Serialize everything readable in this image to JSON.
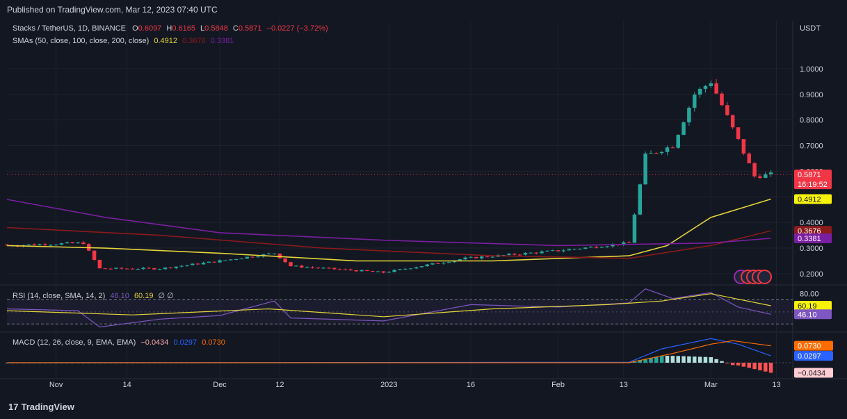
{
  "header": {
    "published": "Published on TradingView.com, Mar 12, 2023 07:40 UTC"
  },
  "footer": {
    "brand": "TradingView",
    "logo_text": "17"
  },
  "colors": {
    "background": "#131722",
    "up": "#26a69a",
    "down": "#f23645",
    "sma50": "#e5d43a",
    "sma100": "#8b1a1a",
    "sma200": "#7b1fa2",
    "rsi": "#7e57c2",
    "rsi_sma": "#e5d43a",
    "macd": "#2962ff",
    "signal": "#ff6d00"
  },
  "legend": {
    "symbol": "Stacks / TetherUS, 1D, BINANCE",
    "o_label": "O",
    "o": "0.6097",
    "h_label": "H",
    "h": "0.6165",
    "l_label": "L",
    "l": "0.5848",
    "c_label": "C",
    "c": "0.5871",
    "change": "−0.0227 (−3.72%)",
    "sma_title": "SMAs (50, close, 100, close, 200, close)",
    "sma50": "0.4912",
    "sma100": "0.3676",
    "sma200": "0.3381",
    "rsi_title": "RSI (14, close, SMA, 14, 2)",
    "rsi": "46.10",
    "rsi_sma": "60.19",
    "rsi_extra": "∅  ∅",
    "macd_title": "MACD (12, 26, close, 9, EMA, EMA)",
    "macd_hist": "−0.0434",
    "macd": "0.0297",
    "macd_signal": "0.0730"
  },
  "chart_data": [
    {
      "type": "candlestick",
      "title": "Stacks / TetherUS, 1D, BINANCE",
      "currency": "USDT",
      "x_range": [
        "2022-10-23",
        "2023-03-16"
      ],
      "y_range": [
        0.17,
        1.1
      ],
      "y_ticks": [
        0.2,
        0.3,
        0.4,
        0.5,
        0.6,
        0.7,
        0.8,
        0.9,
        1.0
      ],
      "y_tick_labels": [
        "0.2000",
        "0.3000",
        "0.4000",
        "0.5000",
        "0.6000",
        "0.7000",
        "0.8000",
        "0.9000",
        "1.0000"
      ],
      "x_ticks": [
        {
          "date": "2022-11-01",
          "label": "Nov"
        },
        {
          "date": "2022-11-14",
          "label": "14"
        },
        {
          "date": "2022-12-01",
          "label": "Dec"
        },
        {
          "date": "2022-12-12",
          "label": "12"
        },
        {
          "date": "2023-01-01",
          "label": "2023"
        },
        {
          "date": "2023-01-16",
          "label": "16"
        },
        {
          "date": "2023-02-01",
          "label": "Feb"
        },
        {
          "date": "2023-02-13",
          "label": "13"
        },
        {
          "date": "2023-03-01",
          "label": "Mar"
        },
        {
          "date": "2023-03-13",
          "label": "13"
        }
      ],
      "ohlc_key_points": [
        {
          "date": "2022-10-23",
          "close": 0.31
        },
        {
          "date": "2022-11-06",
          "close": 0.32
        },
        {
          "date": "2022-11-09",
          "close": 0.22
        },
        {
          "date": "2022-11-20",
          "close": 0.22
        },
        {
          "date": "2022-12-01",
          "close": 0.25
        },
        {
          "date": "2022-12-11",
          "close": 0.28
        },
        {
          "date": "2022-12-14",
          "close": 0.23
        },
        {
          "date": "2022-12-31",
          "close": 0.205
        },
        {
          "date": "2023-01-15",
          "close": 0.26
        },
        {
          "date": "2023-02-01",
          "close": 0.29
        },
        {
          "date": "2023-02-14",
          "close": 0.32
        },
        {
          "date": "2023-02-17",
          "close": 0.66
        },
        {
          "date": "2023-02-22",
          "close": 0.7
        },
        {
          "date": "2023-02-26",
          "close": 0.9
        },
        {
          "date": "2023-03-01",
          "close": 0.95
        },
        {
          "date": "2023-03-06",
          "close": 0.72
        },
        {
          "date": "2023-03-09",
          "close": 0.58
        },
        {
          "date": "2023-03-12",
          "close": 0.5871
        }
      ],
      "last_price": {
        "value": 0.5871,
        "label": "0.5871",
        "countdown": "16:19:52"
      },
      "series": [
        {
          "name": "SMA 50",
          "last": 0.4912,
          "label": "0.4912",
          "points": [
            [
              "2022-10-23",
              0.31
            ],
            [
              "2022-11-10",
              0.3
            ],
            [
              "2022-12-01",
              0.28
            ],
            [
              "2022-12-26",
              0.25
            ],
            [
              "2023-01-20",
              0.25
            ],
            [
              "2023-02-14",
              0.27
            ],
            [
              "2023-02-21",
              0.31
            ],
            [
              "2023-03-01",
              0.42
            ],
            [
              "2023-03-12",
              0.4912
            ]
          ]
        },
        {
          "name": "SMA 100",
          "last": 0.3676,
          "label": "0.3676",
          "points": [
            [
              "2022-10-23",
              0.38
            ],
            [
              "2022-11-20",
              0.35
            ],
            [
              "2022-12-20",
              0.3
            ],
            [
              "2023-01-20",
              0.27
            ],
            [
              "2023-02-14",
              0.26
            ],
            [
              "2023-03-01",
              0.31
            ],
            [
              "2023-03-12",
              0.3676
            ]
          ]
        },
        {
          "name": "SMA 200",
          "last": 0.3381,
          "label": "0.3381",
          "points": [
            [
              "2022-10-23",
              0.49
            ],
            [
              "2022-11-10",
              0.42
            ],
            [
              "2022-12-01",
              0.36
            ],
            [
              "2023-01-01",
              0.33
            ],
            [
              "2023-02-01",
              0.31
            ],
            [
              "2023-03-01",
              0.32
            ],
            [
              "2023-03-12",
              0.3381
            ]
          ]
        }
      ]
    },
    {
      "type": "line",
      "title": "RSI (14, close, SMA, 14, 2)",
      "y_range": [
        20,
        90
      ],
      "y_ticks": [
        80.0
      ],
      "y_tick_labels": [
        "80.00"
      ],
      "series": [
        {
          "name": "RSI",
          "last": 46.1,
          "label": "46.10",
          "points": [
            [
              "2022-10-23",
              55
            ],
            [
              "2022-11-05",
              52
            ],
            [
              "2022-11-09",
              25
            ],
            [
              "2022-11-20",
              38
            ],
            [
              "2022-12-01",
              44
            ],
            [
              "2022-12-11",
              68
            ],
            [
              "2022-12-14",
              40
            ],
            [
              "2022-12-31",
              35
            ],
            [
              "2023-01-16",
              62
            ],
            [
              "2023-02-01",
              58
            ],
            [
              "2023-02-14",
              65
            ],
            [
              "2023-02-17",
              88
            ],
            [
              "2023-02-22",
              72
            ],
            [
              "2023-03-01",
              82
            ],
            [
              "2023-03-06",
              58
            ],
            [
              "2023-03-12",
              46.1
            ]
          ]
        },
        {
          "name": "RSI SMA",
          "last": 60.19,
          "label": "60.19",
          "points": [
            [
              "2022-10-23",
              52
            ],
            [
              "2022-11-15",
              45
            ],
            [
              "2022-12-10",
              55
            ],
            [
              "2022-12-31",
              42
            ],
            [
              "2023-01-20",
              55
            ],
            [
              "2023-02-10",
              62
            ],
            [
              "2023-02-20",
              68
            ],
            [
              "2023-03-01",
              80
            ],
            [
              "2023-03-12",
              60.19
            ]
          ]
        }
      ]
    },
    {
      "type": "bar+line",
      "title": "MACD (12, 26, close, 9, EMA, EMA)",
      "y_range": [
        -0.06,
        0.12
      ],
      "series": [
        {
          "name": "Histogram",
          "last": -0.0434,
          "label": "−0.0434"
        },
        {
          "name": "MACD",
          "last": 0.0297,
          "label": "0.0297",
          "points": [
            [
              "2022-10-23",
              0.0
            ],
            [
              "2022-12-10",
              0.001
            ],
            [
              "2023-02-14",
              0.002
            ],
            [
              "2023-02-20",
              0.06
            ],
            [
              "2023-03-01",
              0.104
            ],
            [
              "2023-03-06",
              0.08
            ],
            [
              "2023-03-12",
              0.0297
            ]
          ]
        },
        {
          "name": "Signal",
          "last": 0.073,
          "label": "0.0730",
          "points": [
            [
              "2022-10-23",
              0.0
            ],
            [
              "2023-02-14",
              0.0
            ],
            [
              "2023-02-22",
              0.04
            ],
            [
              "2023-03-01",
              0.08
            ],
            [
              "2023-03-05",
              0.095
            ],
            [
              "2023-03-12",
              0.073
            ]
          ]
        }
      ]
    }
  ]
}
